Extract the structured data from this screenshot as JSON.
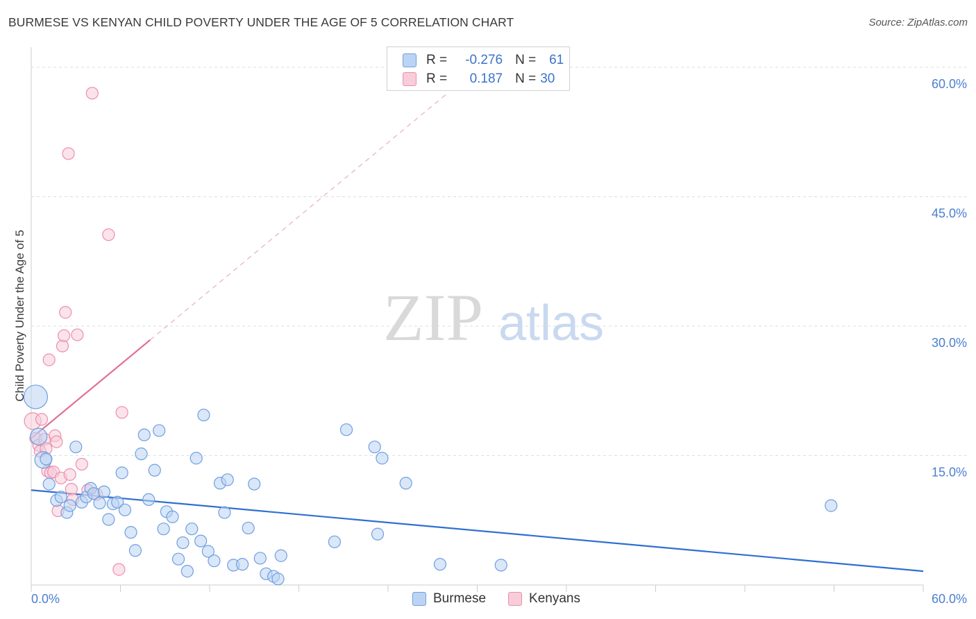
{
  "header": {
    "title": "BURMESE VS KENYAN CHILD POVERTY UNDER THE AGE OF 5 CORRELATION CHART",
    "source": "Source: ZipAtlas.com"
  },
  "legend_box": {
    "rows": [
      {
        "r_label": "R =",
        "r_value": "-0.276",
        "n_label": "N =",
        "n_value": "61"
      },
      {
        "r_label": "R =",
        "r_value": "0.187",
        "n_label": "N =",
        "n_value": "30"
      }
    ]
  },
  "bottom_legend": {
    "series1": "Burmese",
    "series2": "Kenyans"
  },
  "watermark": {
    "part1": "ZIP",
    "part2": "atlas"
  },
  "colors": {
    "blue_fill": "#bcd4f3",
    "blue_stroke": "#6e9fe0",
    "blue_line": "#2f6fd0",
    "pink_fill": "#f8ccd9",
    "pink_stroke": "#ea8fae",
    "pink_line": "#e0709a",
    "grid": "#dddddd",
    "axis_tick_text": "#4a7fd0"
  },
  "chart_data": {
    "type": "scatter",
    "title": "BURMESE VS KENYAN CHILD POVERTY UNDER THE AGE OF 5 CORRELATION CHART",
    "xlabel": "",
    "ylabel": "Child Poverty Under the Age of 5",
    "xlim": [
      0,
      60
    ],
    "ylim": [
      0,
      60
    ],
    "x_tick_labels": [
      "0.0%",
      "60.0%"
    ],
    "y_ticks": [
      15,
      30,
      45,
      60
    ],
    "y_tick_labels": [
      "15.0%",
      "30.0%",
      "45.0%",
      "60.0%"
    ],
    "series": [
      {
        "name": "Burmese",
        "r": -0.276,
        "n": 61,
        "trend": {
          "x0": 0,
          "y0": 11.0,
          "x1": 60,
          "y1": 1.6
        },
        "points": [
          {
            "x": 0.3,
            "y": 21.8,
            "s": 3
          },
          {
            "x": 0.5,
            "y": 17.2,
            "s": 2
          },
          {
            "x": 0.8,
            "y": 14.5,
            "s": 2
          },
          {
            "x": 1.0,
            "y": 14.6,
            "s": 1
          },
          {
            "x": 1.2,
            "y": 11.7,
            "s": 1
          },
          {
            "x": 1.7,
            "y": 9.8,
            "s": 1
          },
          {
            "x": 2.0,
            "y": 10.2,
            "s": 1
          },
          {
            "x": 2.4,
            "y": 8.4,
            "s": 1
          },
          {
            "x": 2.6,
            "y": 9.2,
            "s": 1
          },
          {
            "x": 3.0,
            "y": 16.0,
            "s": 1
          },
          {
            "x": 3.4,
            "y": 9.6,
            "s": 1
          },
          {
            "x": 3.7,
            "y": 10.2,
            "s": 1
          },
          {
            "x": 4.0,
            "y": 11.2,
            "s": 1
          },
          {
            "x": 4.2,
            "y": 10.6,
            "s": 1
          },
          {
            "x": 4.6,
            "y": 9.5,
            "s": 1
          },
          {
            "x": 4.9,
            "y": 10.8,
            "s": 1
          },
          {
            "x": 5.2,
            "y": 7.6,
            "s": 1
          },
          {
            "x": 5.5,
            "y": 9.4,
            "s": 1
          },
          {
            "x": 5.8,
            "y": 9.6,
            "s": 1
          },
          {
            "x": 6.1,
            "y": 13.0,
            "s": 1
          },
          {
            "x": 6.3,
            "y": 8.7,
            "s": 1
          },
          {
            "x": 6.7,
            "y": 6.1,
            "s": 1
          },
          {
            "x": 7.0,
            "y": 4.0,
            "s": 1
          },
          {
            "x": 7.4,
            "y": 15.2,
            "s": 1
          },
          {
            "x": 7.6,
            "y": 17.4,
            "s": 1
          },
          {
            "x": 7.9,
            "y": 9.9,
            "s": 1
          },
          {
            "x": 8.3,
            "y": 13.3,
            "s": 1
          },
          {
            "x": 8.6,
            "y": 17.9,
            "s": 1
          },
          {
            "x": 8.9,
            "y": 6.5,
            "s": 1
          },
          {
            "x": 9.1,
            "y": 8.5,
            "s": 1
          },
          {
            "x": 9.5,
            "y": 7.9,
            "s": 1
          },
          {
            "x": 9.9,
            "y": 3.0,
            "s": 1
          },
          {
            "x": 10.2,
            "y": 4.9,
            "s": 1
          },
          {
            "x": 10.5,
            "y": 1.6,
            "s": 1
          },
          {
            "x": 10.8,
            "y": 6.5,
            "s": 1
          },
          {
            "x": 11.1,
            "y": 14.7,
            "s": 1
          },
          {
            "x": 11.4,
            "y": 5.1,
            "s": 1
          },
          {
            "x": 11.6,
            "y": 19.7,
            "s": 1
          },
          {
            "x": 11.9,
            "y": 3.9,
            "s": 1
          },
          {
            "x": 12.3,
            "y": 2.8,
            "s": 1
          },
          {
            "x": 12.7,
            "y": 11.8,
            "s": 1
          },
          {
            "x": 13.0,
            "y": 8.4,
            "s": 1
          },
          {
            "x": 13.2,
            "y": 12.2,
            "s": 1
          },
          {
            "x": 13.6,
            "y": 2.3,
            "s": 1
          },
          {
            "x": 14.2,
            "y": 2.4,
            "s": 1
          },
          {
            "x": 14.6,
            "y": 6.6,
            "s": 1
          },
          {
            "x": 15.0,
            "y": 11.7,
            "s": 1
          },
          {
            "x": 15.4,
            "y": 3.1,
            "s": 1
          },
          {
            "x": 15.8,
            "y": 1.3,
            "s": 1
          },
          {
            "x": 16.3,
            "y": 1.0,
            "s": 1
          },
          {
            "x": 16.8,
            "y": 3.4,
            "s": 1
          },
          {
            "x": 20.4,
            "y": 5.0,
            "s": 1
          },
          {
            "x": 21.2,
            "y": 18.0,
            "s": 1
          },
          {
            "x": 23.1,
            "y": 16.0,
            "s": 1
          },
          {
            "x": 23.3,
            "y": 5.9,
            "s": 1
          },
          {
            "x": 23.6,
            "y": 14.7,
            "s": 1
          },
          {
            "x": 25.2,
            "y": 11.8,
            "s": 1
          },
          {
            "x": 27.5,
            "y": 2.4,
            "s": 1
          },
          {
            "x": 31.6,
            "y": 2.3,
            "s": 1
          },
          {
            "x": 53.8,
            "y": 9.2,
            "s": 1
          },
          {
            "x": 16.6,
            "y": 0.7,
            "s": 1
          }
        ]
      },
      {
        "name": "Kenyans",
        "r": 0.187,
        "n": 30,
        "trend": {
          "x0": 0,
          "y0": 17.0,
          "x1": 8.0,
          "y1": 28.4
        },
        "trend_dashed": {
          "x0": 8.0,
          "y0": 28.4,
          "x1": 28.0,
          "y1": 57.0
        },
        "points": [
          {
            "x": 0.1,
            "y": 19.0,
            "s": 2
          },
          {
            "x": 0.3,
            "y": 17.0,
            "s": 1
          },
          {
            "x": 0.5,
            "y": 16.2,
            "s": 1
          },
          {
            "x": 0.6,
            "y": 15.5,
            "s": 1
          },
          {
            "x": 0.7,
            "y": 19.2,
            "s": 1
          },
          {
            "x": 0.9,
            "y": 16.9,
            "s": 1
          },
          {
            "x": 1.0,
            "y": 15.8,
            "s": 1
          },
          {
            "x": 1.1,
            "y": 13.2,
            "s": 1
          },
          {
            "x": 1.2,
            "y": 26.1,
            "s": 1
          },
          {
            "x": 1.3,
            "y": 13.0,
            "s": 1
          },
          {
            "x": 1.5,
            "y": 13.1,
            "s": 1
          },
          {
            "x": 1.6,
            "y": 17.3,
            "s": 1
          },
          {
            "x": 1.7,
            "y": 16.6,
            "s": 1
          },
          {
            "x": 1.8,
            "y": 8.6,
            "s": 1
          },
          {
            "x": 2.0,
            "y": 12.4,
            "s": 1
          },
          {
            "x": 2.1,
            "y": 27.7,
            "s": 1
          },
          {
            "x": 2.2,
            "y": 28.9,
            "s": 1
          },
          {
            "x": 2.3,
            "y": 31.6,
            "s": 1
          },
          {
            "x": 2.5,
            "y": 50.0,
            "s": 1
          },
          {
            "x": 2.6,
            "y": 12.8,
            "s": 1
          },
          {
            "x": 2.7,
            "y": 11.1,
            "s": 1
          },
          {
            "x": 2.8,
            "y": 9.9,
            "s": 1
          },
          {
            "x": 3.1,
            "y": 29.0,
            "s": 1
          },
          {
            "x": 3.4,
            "y": 14.0,
            "s": 1
          },
          {
            "x": 3.8,
            "y": 11.0,
            "s": 1
          },
          {
            "x": 4.1,
            "y": 57.0,
            "s": 1
          },
          {
            "x": 5.2,
            "y": 40.6,
            "s": 1
          },
          {
            "x": 5.9,
            "y": 1.8,
            "s": 1
          },
          {
            "x": 6.1,
            "y": 20.0,
            "s": 1
          },
          {
            "x": 4.4,
            "y": 10.5,
            "s": 1
          }
        ]
      }
    ]
  }
}
